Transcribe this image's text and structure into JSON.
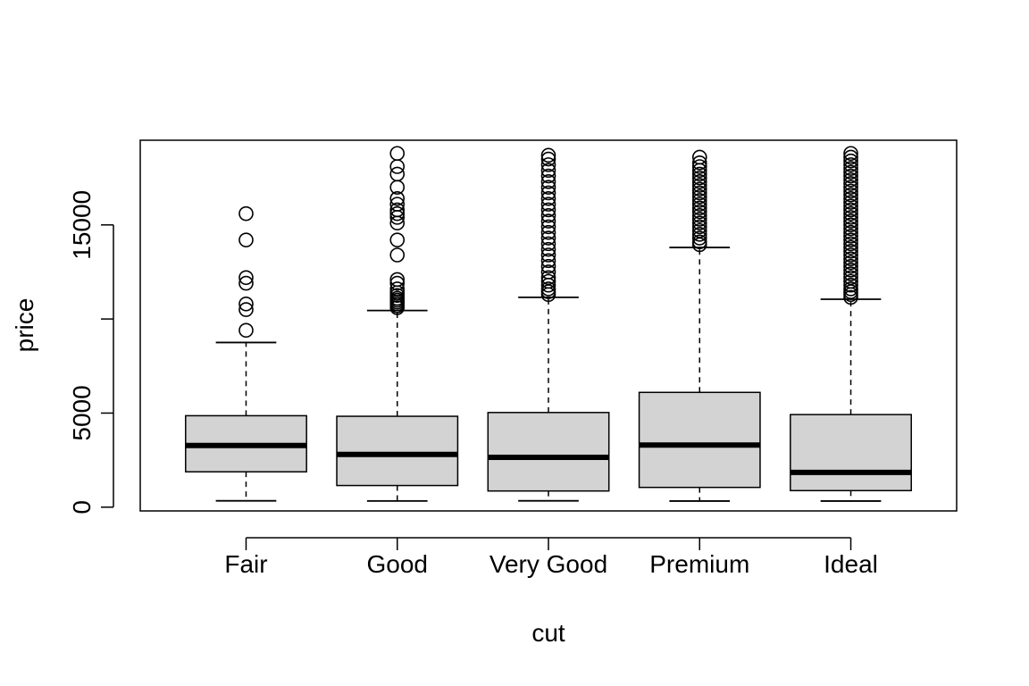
{
  "chart_data": {
    "type": "boxplot",
    "title": "",
    "xlabel": "cut",
    "ylabel": "price",
    "ylim": [
      -200,
      19500
    ],
    "yticks": [
      {
        "value": 0,
        "label": "0"
      },
      {
        "value": 5000,
        "label": "5000"
      },
      {
        "value": 10000,
        "label": ""
      },
      {
        "value": 15000,
        "label": "15000"
      }
    ],
    "box_fill": "#d3d3d3",
    "categories": [
      "Fair",
      "Good",
      "Very Good",
      "Premium",
      "Ideal"
    ],
    "boxes": [
      {
        "category": "Fair",
        "whisker_low": 337,
        "q1": 1880,
        "median": 3280,
        "q3": 4860,
        "whisker_high": 8750,
        "outliers": [
          9400,
          10500,
          10800,
          11900,
          12200,
          14200,
          15600
        ]
      },
      {
        "category": "Good",
        "whisker_low": 327,
        "q1": 1150,
        "median": 2800,
        "q3": 4830,
        "whisker_high": 10450,
        "outliers": [
          10600,
          10700,
          10800,
          10900,
          11000,
          11100,
          11250,
          11400,
          11600,
          11900,
          12100,
          13400,
          14200,
          15100,
          15400,
          15600,
          15800,
          16100,
          16400,
          17000,
          17700,
          18100,
          18800
        ]
      },
      {
        "category": "Very Good",
        "whisker_low": 336,
        "q1": 860,
        "median": 2650,
        "q3": 5030,
        "whisker_high": 11150,
        "outliers": [
          11300,
          11450,
          11600,
          11800,
          12000,
          12200,
          12500,
          12800,
          13100,
          13400,
          13700,
          14000,
          14300,
          14600,
          14900,
          15200,
          15500,
          15800,
          16100,
          16400,
          16700,
          17000,
          17300,
          17600,
          17900,
          18200,
          18500,
          18700
        ]
      },
      {
        "category": "Premium",
        "whisker_low": 326,
        "q1": 1050,
        "median": 3300,
        "q3": 6100,
        "whisker_high": 13800,
        "outliers": [
          13950,
          14100,
          14300,
          14500,
          14700,
          14900,
          15100,
          15300,
          15500,
          15700,
          15900,
          16100,
          16300,
          16500,
          16700,
          16900,
          17100,
          17300,
          17500,
          17700,
          17900,
          18100,
          18300,
          18600
        ]
      },
      {
        "category": "Ideal",
        "whisker_low": 326,
        "q1": 880,
        "median": 1850,
        "q3": 4920,
        "whisker_high": 11050,
        "outliers": [
          11150,
          11300,
          11450,
          11600,
          11800,
          12000,
          12200,
          12400,
          12600,
          12800,
          13000,
          13200,
          13400,
          13600,
          13800,
          14000,
          14200,
          14400,
          14600,
          14800,
          15000,
          15200,
          15400,
          15600,
          15800,
          16000,
          16200,
          16400,
          16600,
          16800,
          17000,
          17200,
          17400,
          17600,
          17800,
          18000,
          18200,
          18400,
          18600,
          18800
        ]
      }
    ]
  }
}
